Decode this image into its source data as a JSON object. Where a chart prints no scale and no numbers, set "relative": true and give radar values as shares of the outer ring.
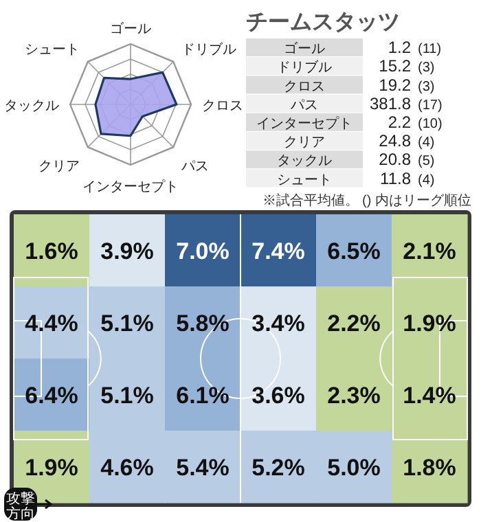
{
  "chart_data": [
    {
      "type": "radar",
      "categories": [
        "ゴール",
        "ドリブル",
        "クロス",
        "パス",
        "インターセプト",
        "クリア",
        "タックル",
        "シュート"
      ],
      "relative": true,
      "series": [
        {
          "color": "#aaa4f0",
          "values": [
            0.42,
            0.75,
            0.76,
            0.28,
            0.52,
            0.69,
            0.58,
            0.62
          ]
        }
      ]
    },
    {
      "type": "other",
      "title": "チームスタッツ",
      "categories": [
        "ゴール",
        "ドリブル",
        "クロス",
        "パス",
        "インターセプト",
        "クリア",
        "タックル",
        "シュート"
      ],
      "series": [
        {
          "values": [
            1.2,
            15.2,
            19.2,
            381.8,
            2.2,
            24.8,
            20.8,
            11.8
          ],
          "value_labels": [
            "1.2",
            "15.2",
            "19.2",
            "381.8",
            "2.2",
            "24.8",
            "20.8",
            "11.8"
          ]
        },
        {
          "values": [
            11,
            3,
            3,
            17,
            10,
            4,
            5,
            4
          ],
          "value_labels": [
            "(11)",
            "(3)",
            "(3)",
            "(17)",
            "(10)",
            "(4)",
            "(5)",
            "(4)"
          ]
        }
      ],
      "annotations": [
        "※試合平均値。 () 内はリーグ順位"
      ]
    },
    {
      "type": "heatmap",
      "categories": [
        null,
        null,
        null,
        null,
        null,
        null
      ],
      "y_categories": [
        null,
        null,
        null,
        null
      ],
      "cells": [
        [
          1.6,
          3.9,
          7.0,
          7.4,
          6.5,
          2.1
        ],
        [
          4.4,
          5.1,
          5.8,
          3.4,
          2.2,
          1.9
        ],
        [
          6.4,
          5.1,
          6.1,
          3.6,
          2.3,
          1.4
        ],
        [
          1.9,
          4.6,
          5.4,
          5.2,
          5.0,
          1.8
        ]
      ],
      "cell_labels": [
        [
          "1.6%",
          "3.9%",
          "7.0%",
          "7.4%",
          "6.5%",
          "2.1%"
        ],
        [
          "4.4%",
          "5.1%",
          "5.8%",
          "3.4%",
          "2.2%",
          "1.9%"
        ],
        [
          "6.4%",
          "5.1%",
          "6.1%",
          "3.6%",
          "2.3%",
          "1.4%"
        ],
        [
          "1.9%",
          "4.6%",
          "5.4%",
          "5.2%",
          "5.0%",
          "1.8%"
        ]
      ],
      "annotations": [
        "攻撃方向"
      ]
    }
  ]
}
